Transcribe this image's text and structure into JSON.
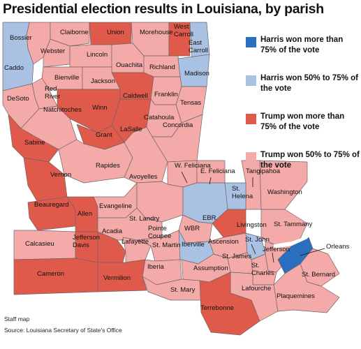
{
  "title": "Presidential election results in Louisiana, by parish",
  "colors": {
    "harris_75_plus": "#2a6fbf",
    "harris_50_75": "#a9c2e4",
    "trump_75_plus": "#e05a4b",
    "trump_50_75": "#f4aaa8"
  },
  "legend": [
    {
      "key": "harris_75_plus",
      "label": "Harris won more than 75% of the vote"
    },
    {
      "key": "harris_50_75",
      "label": "Harris won 50% to 75% of the vote"
    },
    {
      "key": "trump_75_plus",
      "label": "Trump won more than 75% of the vote"
    },
    {
      "key": "trump_50_75",
      "label": "Trump won 50% to 75% of the vote"
    }
  ],
  "parishes": [
    {
      "name": "Bossier",
      "category": "trump_50_75"
    },
    {
      "name": "Claiborne",
      "category": "trump_50_75"
    },
    {
      "name": "Union",
      "category": "trump_75_plus"
    },
    {
      "name": "Morehouse",
      "category": "trump_50_75"
    },
    {
      "name": "West Carroll",
      "category": "trump_75_plus"
    },
    {
      "name": "East Carroll",
      "category": "harris_50_75"
    },
    {
      "name": "Webster",
      "category": "trump_50_75"
    },
    {
      "name": "Lincoln",
      "category": "trump_50_75"
    },
    {
      "name": "Caddo",
      "category": "harris_50_75"
    },
    {
      "name": "Ouachita",
      "category": "trump_50_75"
    },
    {
      "name": "Richland",
      "category": "trump_50_75"
    },
    {
      "name": "Madison",
      "category": "harris_50_75"
    },
    {
      "name": "Bienville",
      "category": "trump_50_75"
    },
    {
      "name": "Jackson",
      "category": "trump_50_75"
    },
    {
      "name": "Red River",
      "category": "trump_50_75"
    },
    {
      "name": "Caldwell",
      "category": "trump_75_plus"
    },
    {
      "name": "Franklin",
      "category": "trump_50_75"
    },
    {
      "name": "DeSoto",
      "category": "trump_50_75"
    },
    {
      "name": "Winn",
      "category": "trump_75_plus"
    },
    {
      "name": "Tensas",
      "category": "trump_50_75"
    },
    {
      "name": "Natchitoches",
      "category": "trump_50_75"
    },
    {
      "name": "Grant",
      "category": "trump_75_plus"
    },
    {
      "name": "LaSalle",
      "category": "trump_75_plus"
    },
    {
      "name": "Catahoula",
      "category": "trump_50_75"
    },
    {
      "name": "Concordia",
      "category": "trump_50_75"
    },
    {
      "name": "Sabine",
      "category": "trump_75_plus"
    },
    {
      "name": "Rapides",
      "category": "trump_50_75"
    },
    {
      "name": "Avoyelles",
      "category": "trump_50_75"
    },
    {
      "name": "Vernon",
      "category": "trump_75_plus"
    },
    {
      "name": "W. Feliciana",
      "category": "trump_50_75"
    },
    {
      "name": "E. Feliciana",
      "category": "trump_50_75"
    },
    {
      "name": "Tangipahoa",
      "category": "trump_50_75"
    },
    {
      "name": "St. Helena",
      "category": "harris_50_75"
    },
    {
      "name": "Washington",
      "category": "trump_50_75"
    },
    {
      "name": "Beauregard",
      "category": "trump_75_plus"
    },
    {
      "name": "Allen",
      "category": "trump_75_plus"
    },
    {
      "name": "Evangeline",
      "category": "trump_50_75"
    },
    {
      "name": "Pointe Coupee",
      "category": "trump_50_75"
    },
    {
      "name": "EBR",
      "category": "harris_50_75"
    },
    {
      "name": "St. Landry",
      "category": "trump_50_75"
    },
    {
      "name": "Livingston",
      "category": "trump_75_plus"
    },
    {
      "name": "St. Tammany",
      "category": "trump_50_75"
    },
    {
      "name": "WBR",
      "category": "trump_50_75"
    },
    {
      "name": "Calcasieu",
      "category": "trump_50_75"
    },
    {
      "name": "Jefferson Davis",
      "category": "trump_75_plus"
    },
    {
      "name": "Acadia",
      "category": "trump_75_plus"
    },
    {
      "name": "Lafayette",
      "category": "trump_50_75"
    },
    {
      "name": "St. Martin",
      "category": "trump_50_75"
    },
    {
      "name": "Iberville",
      "category": "harris_50_75"
    },
    {
      "name": "Ascension",
      "category": "trump_50_75"
    },
    {
      "name": "St. John",
      "category": "harris_50_75"
    },
    {
      "name": "Jefferson",
      "category": "trump_50_75"
    },
    {
      "name": "Orleans",
      "category": "harris_75_plus"
    },
    {
      "name": "St. James",
      "category": "trump_50_75"
    },
    {
      "name": "Iberia",
      "category": "trump_50_75"
    },
    {
      "name": "Assumption",
      "category": "trump_50_75"
    },
    {
      "name": "St. Charles",
      "category": "trump_50_75"
    },
    {
      "name": "St. Bernard",
      "category": "trump_50_75"
    },
    {
      "name": "Cameron",
      "category": "trump_75_plus"
    },
    {
      "name": "Vermilion",
      "category": "trump_75_plus"
    },
    {
      "name": "St. Mary",
      "category": "trump_50_75"
    },
    {
      "name": "Lafourche",
      "category": "trump_50_75"
    },
    {
      "name": "Plaquemines",
      "category": "trump_50_75"
    },
    {
      "name": "Terrebonne",
      "category": "trump_75_plus"
    }
  ],
  "credits": {
    "staff": "Staff map",
    "source": "Source: Louisiana Secretary of State's Office"
  }
}
